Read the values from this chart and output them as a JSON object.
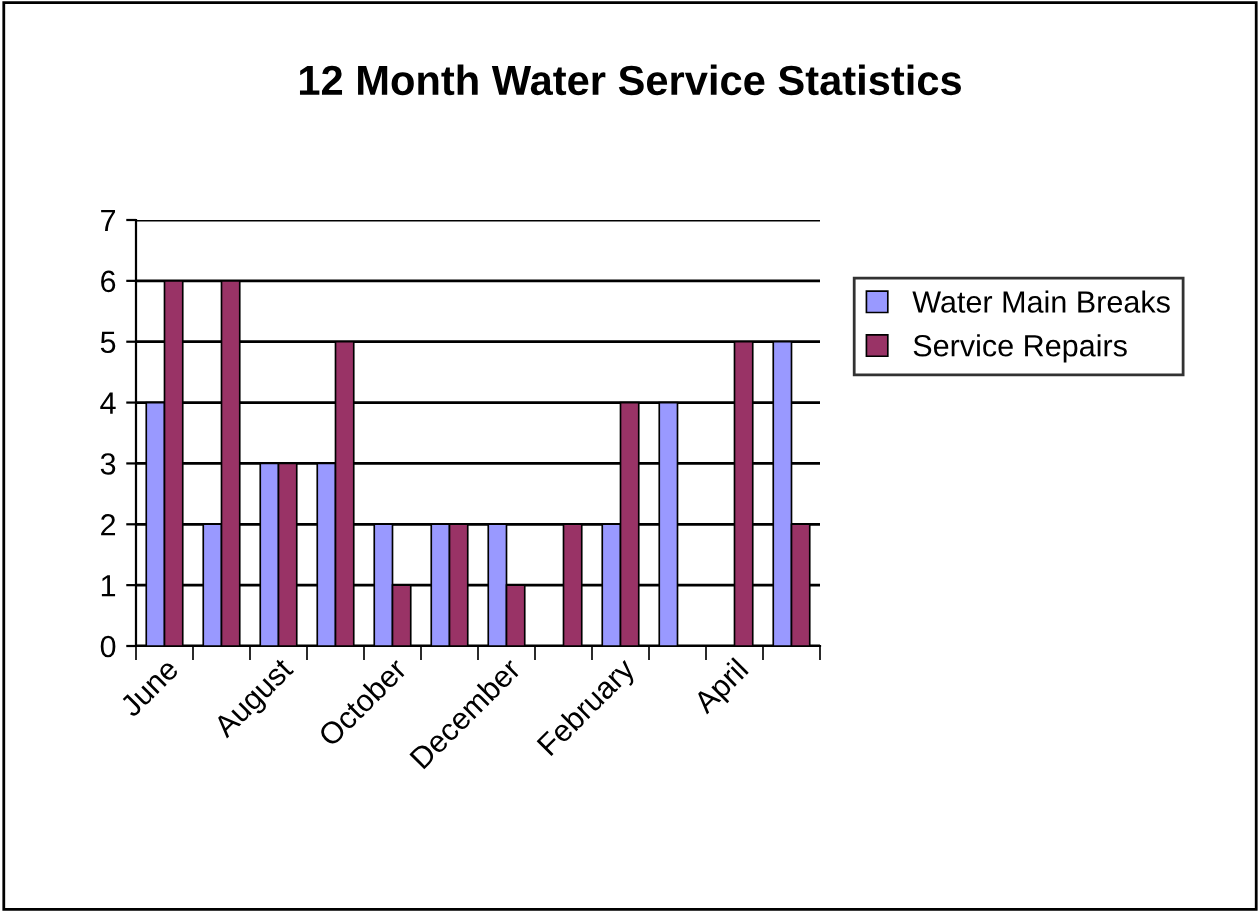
{
  "chart_data": {
    "type": "bar",
    "title": "12 Month Water Service Statistics",
    "categories": [
      "June",
      null,
      "August",
      null,
      "October",
      null,
      "December",
      null,
      "February",
      null,
      "April",
      null
    ],
    "series": [
      {
        "name": "Water Main Breaks",
        "color": "#9999ff",
        "values": [
          4,
          2,
          3,
          3,
          2,
          2,
          2,
          0,
          2,
          4,
          0,
          5
        ]
      },
      {
        "name": "Service Repairs",
        "color": "#993366",
        "values": [
          6,
          6,
          3,
          5,
          1,
          2,
          1,
          2,
          4,
          0,
          5,
          2
        ]
      }
    ],
    "ylim": [
      0,
      7
    ],
    "yticks": [
      0,
      1,
      2,
      3,
      4,
      5,
      6,
      7
    ],
    "grid": "y",
    "legend": "right"
  }
}
